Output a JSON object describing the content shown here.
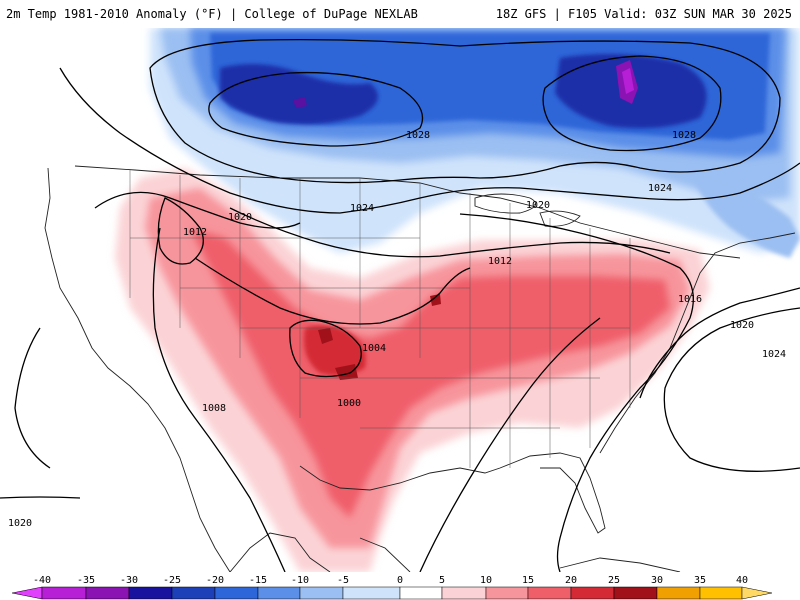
{
  "header": {
    "title_left": "2m Temp 1981-2010 Anomaly (°F) | College of DuPage NEXLAB",
    "title_right": "18Z GFS | F105 Valid: 03Z SUN MAR 30 2025"
  },
  "isobars": [
    {
      "name": "1028-west",
      "label": "1028"
    },
    {
      "name": "1028-east",
      "label": "1028"
    },
    {
      "name": "1024-north",
      "label": "1024"
    },
    {
      "name": "1024-northeast",
      "label": "1024"
    },
    {
      "name": "1024-atlantic",
      "label": "1024"
    },
    {
      "name": "1020-north",
      "label": "1020"
    },
    {
      "name": "1020-northwest",
      "label": "1020"
    },
    {
      "name": "1020-atlantic",
      "label": "1020"
    },
    {
      "name": "1020-pacific",
      "label": "1020"
    },
    {
      "name": "1016-east",
      "label": "1016"
    },
    {
      "name": "1012-central",
      "label": "1012"
    },
    {
      "name": "1012-northwest",
      "label": "1012"
    },
    {
      "name": "1008-southwest",
      "label": "1008"
    },
    {
      "name": "1004-plains",
      "label": "1004"
    },
    {
      "name": "1000-low",
      "label": "1000"
    }
  ],
  "legend": {
    "ticks": [
      "-40",
      "-35",
      "-30",
      "-25",
      "-20",
      "-15",
      "-10",
      "-5",
      "0",
      "5",
      "10",
      "15",
      "20",
      "25",
      "30",
      "35",
      "40"
    ],
    "colors": [
      "#e040fb",
      "#b71fd6",
      "#8b12b3",
      "#19129e",
      "#1d3fb8",
      "#2d66d8",
      "#5b8fe8",
      "#9bbff2",
      "#ffffff",
      "#ffffff",
      "#fbc5c9",
      "#f7959c",
      "#ef5f6a",
      "#d42a35",
      "#a11119",
      "#f0a000",
      "#ffc000"
    ]
  }
}
